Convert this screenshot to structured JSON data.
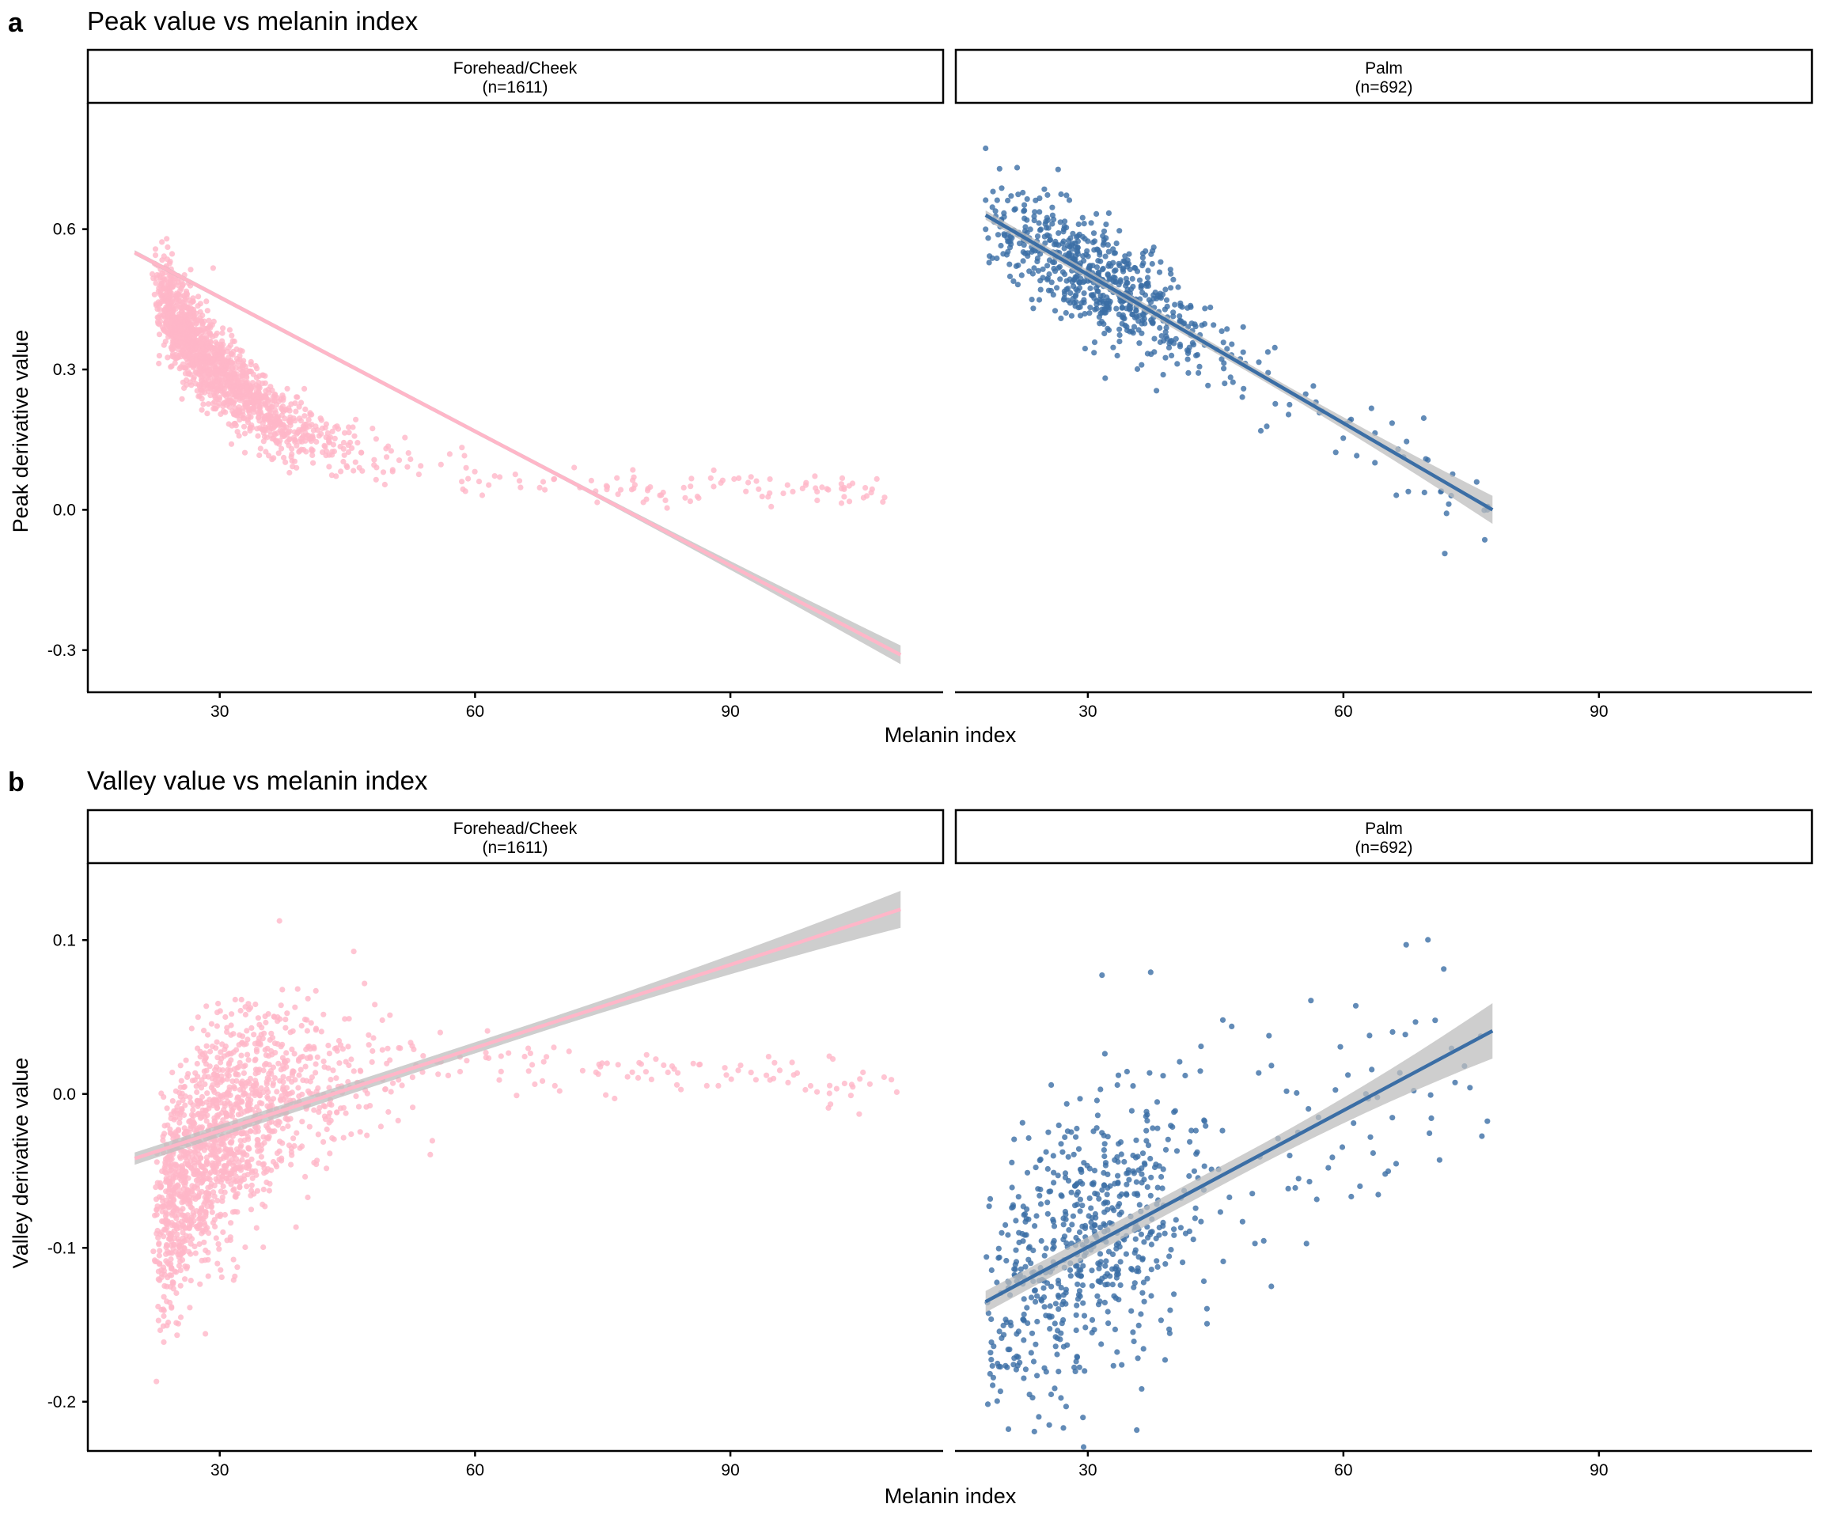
{
  "figure": {
    "panels": [
      {
        "label": "a",
        "title": "Peak value vs melanin index"
      },
      {
        "label": "b",
        "title": "Valley value vs melanin index"
      }
    ],
    "facets": [
      {
        "name": "Forehead/Cheek",
        "n": "(n=1611)"
      },
      {
        "name": "Palm",
        "n": "(n=692)"
      }
    ],
    "colors": {
      "forehead": "#ffb6c8",
      "palm": "#3b6ea5",
      "ribbon": "#bdbdbd",
      "axis": "#000000"
    }
  },
  "chart_data": [
    {
      "type": "scatter",
      "title": "Peak value vs melanin index",
      "xlabel": "Melanin index",
      "ylabel": "Peak derivative value",
      "xlim": [
        14.5,
        115
      ],
      "ylim": [
        -0.39,
        0.87
      ],
      "xticks": [
        30,
        60,
        90
      ],
      "yticks": [
        -0.3,
        0.0,
        0.3,
        0.6
      ],
      "ytick_labels": [
        "-0.3",
        "0.0",
        "0.3",
        "0.6"
      ],
      "facets": [
        {
          "name": "Forehead/Cheek",
          "n": "(n=1611)",
          "n_points": 1611,
          "color": "#ffb6c8",
          "x_range": [
            19.5,
            110
          ],
          "fit": {
            "x": [
              20,
              110
            ],
            "y": [
              0.55,
              -0.31
            ],
            "ci_halfwidth": [
              0.005,
              0.02
            ]
          },
          "pattern": "exponential-like decay: y ~ 0.04 + 0.52*exp(-(x-20)/14) with scatter sd ~0.05 shrinking at high x"
        },
        {
          "name": "Palm",
          "n": "(n=692)",
          "n_points": 692,
          "color": "#3b6ea5",
          "x_range": [
            18,
            77.5
          ],
          "fit": {
            "x": [
              18,
              77.5
            ],
            "y": [
              0.63,
              0.0
            ],
            "ci_halfwidth": [
              0.01,
              0.03
            ]
          },
          "pattern": "linear decrease, scatter sd ~0.055"
        }
      ]
    },
    {
      "type": "scatter",
      "title": "Valley value vs melanin index",
      "xlabel": "Melanin index",
      "ylabel": "Valley derivative value",
      "xlim": [
        14.5,
        115
      ],
      "ylim": [
        -0.232,
        0.15
      ],
      "xticks": [
        30,
        60,
        90
      ],
      "yticks": [
        -0.2,
        -0.1,
        0.0,
        0.1
      ],
      "ytick_labels": [
        "-0.2",
        "-0.1",
        "0.0",
        "0.1"
      ],
      "facets": [
        {
          "name": "Forehead/Cheek",
          "n": "(n=1611)",
          "n_points": 1611,
          "color": "#ffb6c8",
          "x_range": [
            19.5,
            110
          ],
          "fit": {
            "x": [
              20,
              110
            ],
            "y": [
              -0.042,
              0.12
            ],
            "ci_halfwidth": [
              0.004,
              0.012
            ]
          },
          "pattern": "rises from about -0.1 at x=25 to about 0.02 near x=50, then flattens toward 0.006 at high x"
        },
        {
          "name": "Palm",
          "n": "(n=692)",
          "n_points": 692,
          "color": "#3b6ea5",
          "x_range": [
            18,
            77.5
          ],
          "fit": {
            "x": [
              18,
              77.5
            ],
            "y": [
              -0.135,
              0.041
            ],
            "ci_halfwidth": [
              0.007,
              0.018
            ]
          },
          "pattern": "linear increase, wide scatter sd ~0.045"
        }
      ]
    }
  ],
  "ui": {
    "panel_a": {
      "label": "a",
      "title": "Peak value vs melanin index",
      "ylabel": "Peak derivative value",
      "xlabel": "Melanin index"
    },
    "panel_b": {
      "label": "b",
      "title": "Valley value vs melanin index",
      "ylabel": "Valley derivative value",
      "xlabel": "Melanin index"
    },
    "strip_left_name": "Forehead/Cheek",
    "strip_left_n": "(n=1611)",
    "strip_right_name": "Palm",
    "strip_right_n": "(n=692)"
  }
}
